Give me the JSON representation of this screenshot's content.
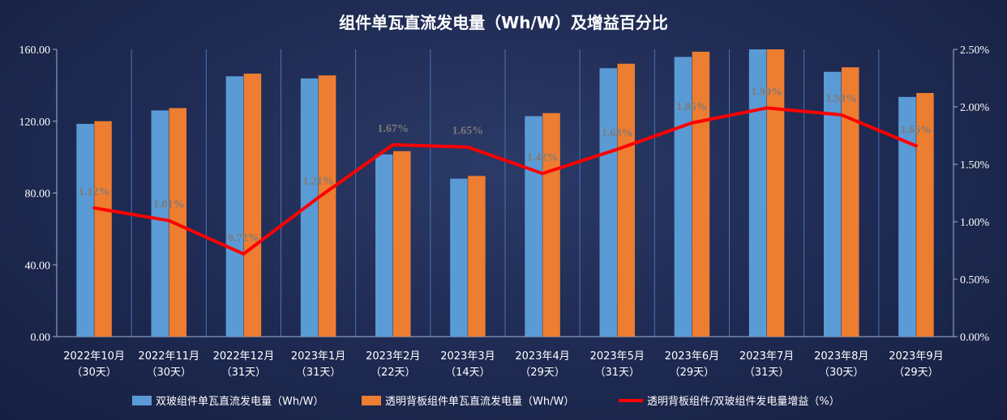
{
  "chart_data": {
    "type": "bar",
    "title": "组件单瓦直流发电量（Wh/W）及增益百分比",
    "categories": [
      [
        "2022年10月",
        "（30天）"
      ],
      [
        "2022年11月",
        "（30天）"
      ],
      [
        "2022年12月",
        "（31天）"
      ],
      [
        "2023年1月",
        "（31天）"
      ],
      [
        "2023年2月",
        "（22天）"
      ],
      [
        "2023年3月",
        "（14天）"
      ],
      [
        "2023年4月",
        "（29天）"
      ],
      [
        "2023年5月",
        "（31天）"
      ],
      [
        "2023年6月",
        "（29天）"
      ],
      [
        "2023年7月",
        "（31天）"
      ],
      [
        "2023年8月",
        "（30天）"
      ],
      [
        "2023年9月",
        "（29天）"
      ]
    ],
    "series": [
      {
        "name": "双玻组件单瓦直流发电量（Wh/W）",
        "type": "bar",
        "axis": "left",
        "color": "#5b9bd5",
        "values": [
          118.5,
          126.0,
          145.0,
          143.8,
          101.5,
          88.0,
          122.8,
          149.5,
          155.8,
          160.0,
          147.5,
          133.5
        ]
      },
      {
        "name": "透明背板组件单瓦直流发电量（Wh/W）",
        "type": "bar",
        "axis": "left",
        "color": "#ed7d31",
        "values": [
          120.0,
          127.3,
          146.5,
          145.5,
          103.3,
          89.5,
          124.5,
          152.0,
          158.7,
          160.0,
          150.0,
          135.7
        ]
      },
      {
        "name": "透明背板组件/双玻组件发电量增益（%）",
        "type": "line",
        "axis": "right",
        "color": "#ff0000",
        "values": [
          1.12,
          1.01,
          0.72,
          1.21,
          1.67,
          1.65,
          1.42,
          1.63,
          1.86,
          1.99,
          1.93,
          1.66
        ],
        "labels": [
          "1.12%",
          "1.01%",
          "0.72%",
          "1.21%",
          "1.67%",
          "1.65%",
          "1.42%",
          "1.63%",
          "1.86%",
          "1.99%",
          "1.93%",
          "1.66%"
        ]
      }
    ],
    "y_left": {
      "min": 0,
      "max": 160,
      "ticks": [
        0,
        40,
        80,
        120,
        160
      ],
      "tick_labels": [
        "0.00",
        "40.00",
        "80.00",
        "120.00",
        "160.00"
      ]
    },
    "y_right": {
      "min": 0,
      "max": 2.5,
      "ticks": [
        0,
        0.5,
        1.0,
        1.5,
        2.0,
        2.5
      ],
      "tick_labels": [
        "0.00%",
        "0.50%",
        "1.00%",
        "1.50%",
        "2.00%",
        "2.50%"
      ]
    },
    "grid": "vertical",
    "legend_position": "bottom",
    "background": "#1e2a52"
  }
}
